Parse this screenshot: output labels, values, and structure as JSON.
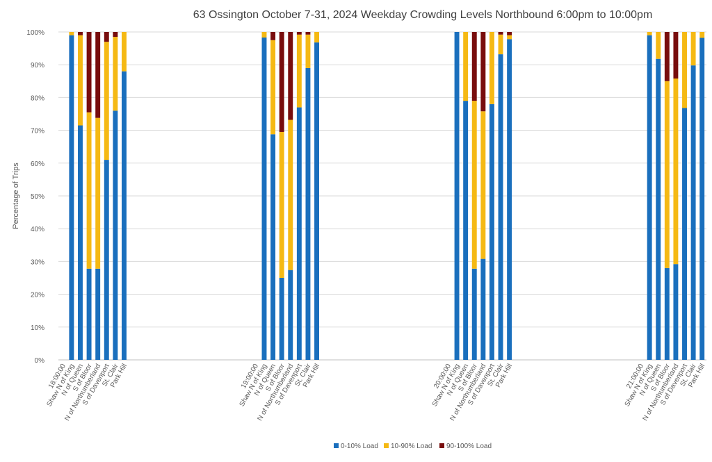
{
  "chart_data": {
    "type": "bar",
    "stacked": true,
    "title": "63 Ossington October 7-31, 2024  Weekday Crowding Levels Northbound 6:00pm to 10:00pm",
    "ylabel": "Percentage of Trips",
    "ylim": [
      0,
      100
    ],
    "y_ticks": [
      "0%",
      "10%",
      "20%",
      "30%",
      "40%",
      "50%",
      "60%",
      "70%",
      "80%",
      "90%",
      "100%"
    ],
    "grid": true,
    "legend_position": "bottom",
    "colors": {
      "load_0_10": "#1a6fbd",
      "load_10_90": "#f5b914",
      "load_90_100": "#780d0d",
      "grid": "#d9d9d9",
      "axis": "#bfbfbf",
      "text": "#595959"
    },
    "stop_labels": [
      "Shaw N of King",
      "N of Queen",
      "S of Bloor",
      "N of Northumberland",
      "S of Davenport",
      "St. Clair",
      "Park Hill"
    ],
    "groups": [
      {
        "hour": "18:00:00",
        "load_0_10": [
          99,
          71.5,
          27.8,
          27.8,
          61,
          76,
          88
        ],
        "load_10_90": [
          1,
          27.5,
          47.7,
          46,
          36,
          22.5,
          12
        ],
        "load_90_100": [
          0,
          1,
          24.5,
          26.2,
          3,
          1.5,
          0
        ]
      },
      {
        "hour": "19:00:00",
        "load_0_10": [
          98.3,
          68.8,
          25,
          27.4,
          77,
          89,
          96.8
        ],
        "load_10_90": [
          1.7,
          28.7,
          44.5,
          45.8,
          22.2,
          10.2,
          3.2
        ],
        "load_90_100": [
          0,
          2.5,
          30.5,
          26.8,
          0.8,
          0.8,
          0
        ]
      },
      {
        "hour": "20:00:00",
        "load_0_10": [
          100,
          79,
          27.8,
          30.8,
          78,
          93.2,
          97.8
        ],
        "load_10_90": [
          0,
          21,
          51.2,
          45,
          22,
          6,
          1.2
        ],
        "load_90_100": [
          0,
          0,
          21,
          24.2,
          0,
          0.8,
          1
        ]
      },
      {
        "hour": "21:00:00",
        "load_0_10": [
          99,
          91.8,
          28,
          29.2,
          76.8,
          89.8,
          98.2
        ],
        "load_10_90": [
          1,
          8.2,
          57,
          56.6,
          23.2,
          10.2,
          1.8
        ],
        "load_90_100": [
          0,
          0,
          15,
          14.2,
          0,
          0,
          0
        ]
      }
    ],
    "series": [
      {
        "name": "0-10% Load",
        "key": "load_0_10"
      },
      {
        "name": "10-90% Load",
        "key": "load_10_90"
      },
      {
        "name": "90-100% Load",
        "key": "load_90_100"
      }
    ]
  }
}
